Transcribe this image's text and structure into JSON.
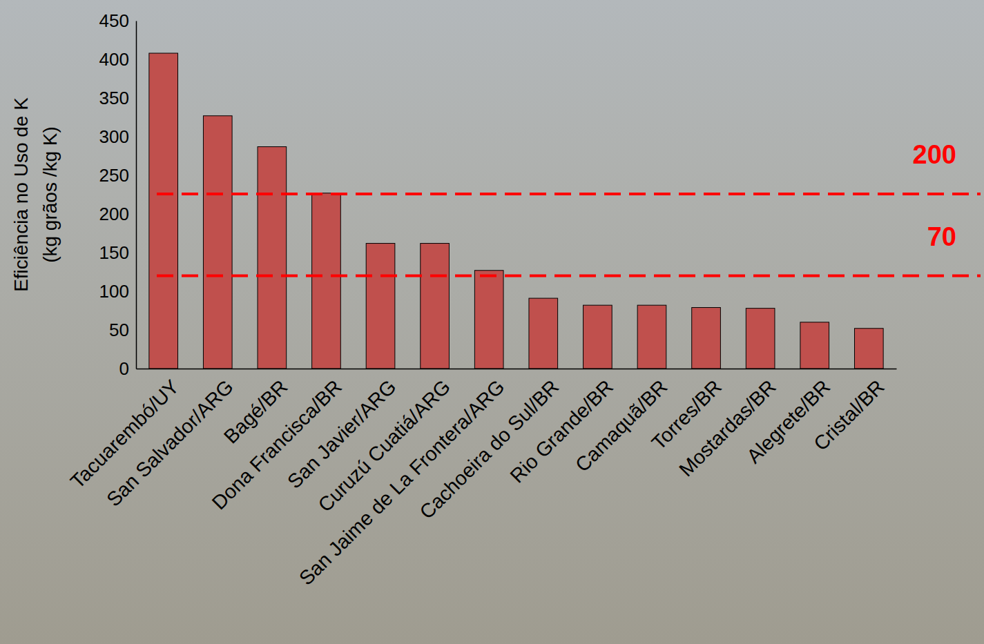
{
  "chart_data": {
    "type": "bar",
    "y_label": "Eficiência no Uso de K (kg grãos /kg K)",
    "categories": [
      "Tacuarembó/UY",
      "San Salvador/ARG",
      "Bagé/BR",
      "Dona Francisca/BR",
      "San Javier/ARG",
      "Curuzú Cuatiá/ARG",
      "San Jaime de La Frontera/ARG",
      "Cachoeira do Sul/BR",
      "Rio Grande/BR",
      "Camaquã/BR",
      "Torres/BR",
      "Mostardas/BR",
      "Alegrete/BR",
      "Cristal/BR"
    ],
    "values": [
      408,
      327,
      287,
      227,
      162,
      162,
      127,
      91,
      82,
      82,
      79,
      78,
      60,
      52
    ],
    "color": "#c0504d",
    "ylim": [
      0,
      450
    ],
    "yticks": [
      0,
      50,
      100,
      150,
      200,
      250,
      300,
      350,
      400,
      450
    ],
    "grid": false,
    "annotations": [
      {
        "y": 226,
        "text": "200",
        "line_style": "dashed",
        "color": "#ff0000"
      },
      {
        "y": 120,
        "text": "70",
        "line_style": "dashed",
        "color": "#ff0000"
      }
    ]
  }
}
